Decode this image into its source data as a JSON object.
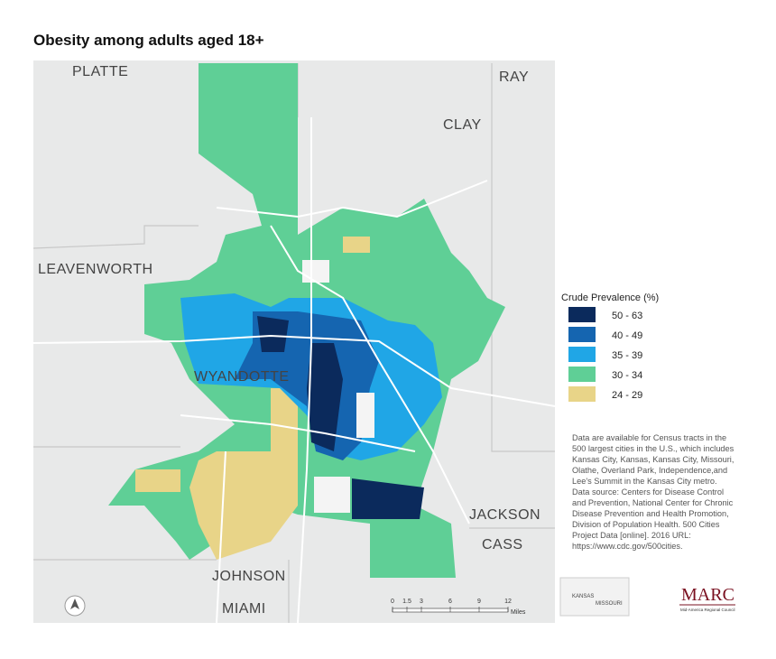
{
  "title": "Obesity among adults aged 18+",
  "counties": [
    "PLATTE",
    "RAY",
    "CLAY",
    "LEAVENWORTH",
    "WYANDOTTE",
    "JACKSON",
    "CASS",
    "JOHNSON",
    "MIAMI"
  ],
  "legend": {
    "title": "Crude Prevalence (%)",
    "items": [
      {
        "label": "50 - 63",
        "color": "#0b2a5c"
      },
      {
        "label": "40 - 49",
        "color": "#1565b0"
      },
      {
        "label": "35 - 39",
        "color": "#20a6e6"
      },
      {
        "label": "30 - 34",
        "color": "#5fcf96"
      },
      {
        "label": "24 - 29",
        "color": "#e8d488"
      }
    ]
  },
  "note": "Data are available for Census tracts in the 500 largest cities in the U.S., which includes Kansas City, Kansas, Kansas City, Missouri, Olathe, Overland Park, Independence,and Lee's Summit in the Kansas City metro. Data source: Centers for Disease Control and Prevention, National Center for Chronic Disease Prevention and Health Promotion, Division of Population Health. 500 Cities Project Data [online]. 2016 URL: https://www.cdc.gov/500cities.",
  "scale_bar": {
    "ticks": [
      0,
      1.5,
      3,
      6,
      9,
      12
    ],
    "unit": "Miles"
  },
  "logos": {
    "state_left": "KANSAS",
    "state_right": "MISSOURI",
    "marc": "MARC",
    "marc_full": "Mid-America Regional Council"
  }
}
